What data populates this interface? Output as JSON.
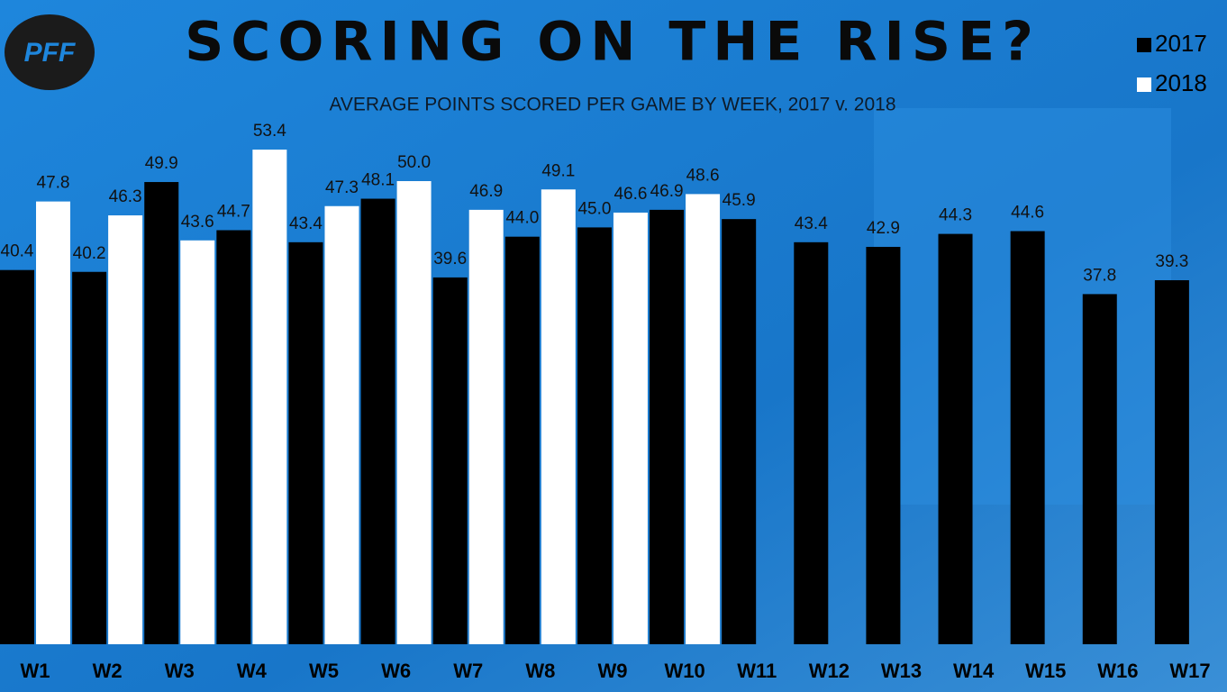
{
  "chart_data": {
    "type": "bar",
    "logo": "PFF",
    "title": "SCORING ON THE RISE?",
    "subtitle": "AVERAGE POINTS SCORED PER GAME BY WEEK, 2017 v. 2018",
    "categories": [
      "W1",
      "W2",
      "W3",
      "W4",
      "W5",
      "W6",
      "W7",
      "W8",
      "W9",
      "W10",
      "W11",
      "W12",
      "W13",
      "W14",
      "W15",
      "W16",
      "W17"
    ],
    "series": [
      {
        "name": "2017",
        "color": "#000000",
        "values": [
          40.4,
          40.2,
          49.9,
          44.7,
          43.4,
          48.1,
          39.6,
          44.0,
          45.0,
          46.9,
          45.9,
          43.4,
          42.9,
          44.3,
          44.6,
          37.8,
          39.3
        ],
        "value_labels": [
          "40.4",
          "40.2",
          "49.9",
          "44.7",
          "43.4",
          "48.1",
          "39.6",
          "44.0",
          "45.0",
          "46.9",
          "45.9",
          "43.4",
          "42.9",
          "44.3",
          "44.6",
          "37.8",
          "39.3"
        ]
      },
      {
        "name": "2018",
        "color": "#ffffff",
        "values": [
          47.8,
          46.3,
          43.6,
          53.4,
          47.3,
          50.0,
          46.9,
          49.1,
          46.6,
          48.6,
          null,
          null,
          null,
          null,
          null,
          null,
          null
        ],
        "value_labels": [
          "47.8",
          "46.3",
          "43.6",
          "53.4",
          "47.3",
          "50.0",
          "46.9",
          "49.1",
          "46.6",
          "48.6",
          null,
          null,
          null,
          null,
          null,
          null,
          null
        ]
      }
    ],
    "ylim": [
      0,
      70
    ],
    "legend": "top-right"
  }
}
